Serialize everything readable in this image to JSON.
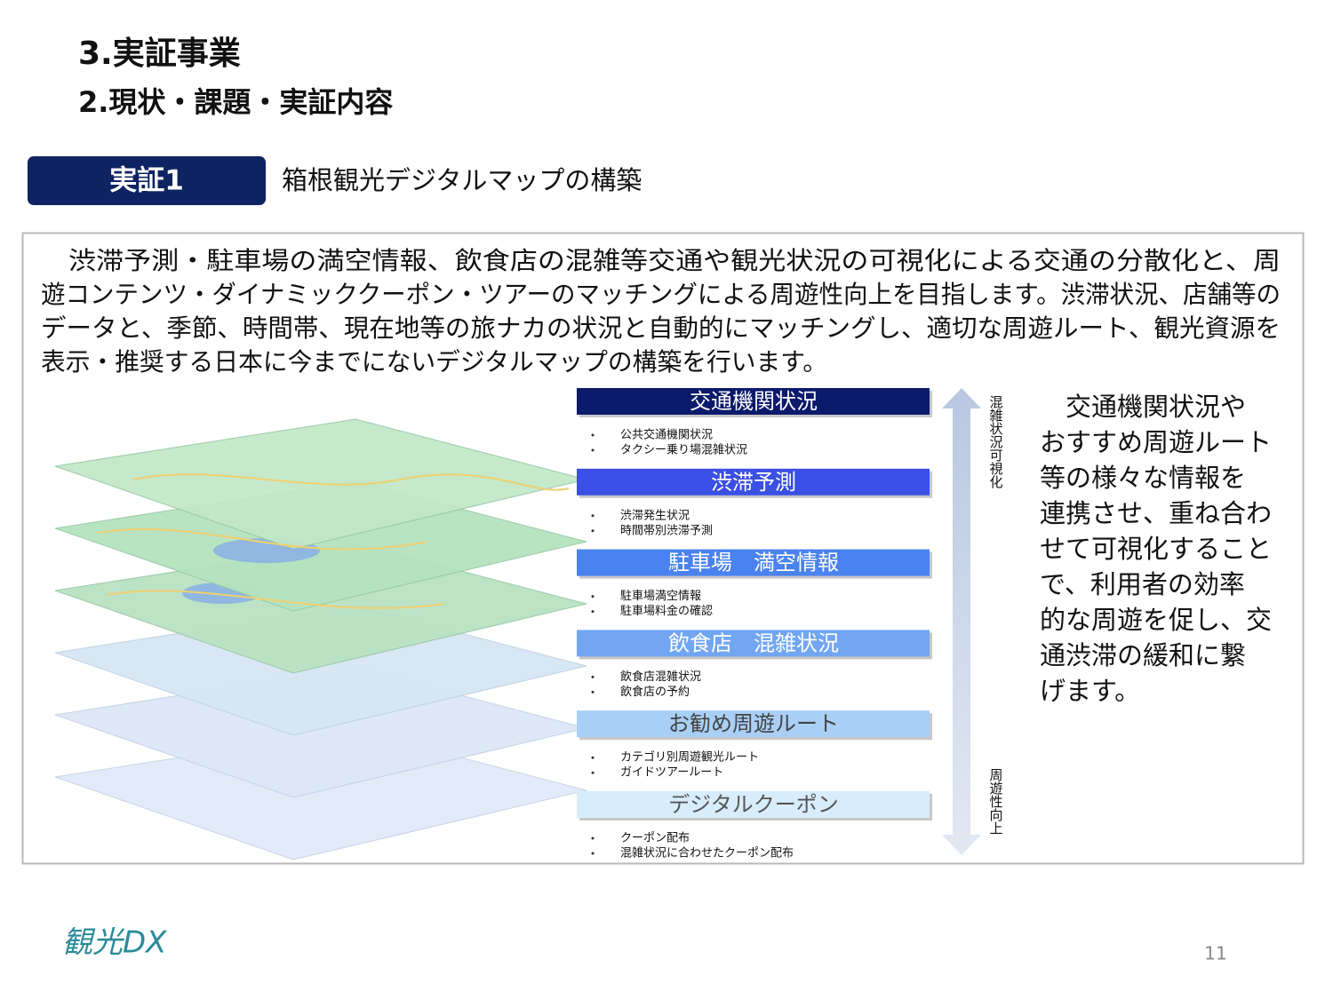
{
  "header": {
    "title": "3.実証事業",
    "subtitle": "2.現状・課題・実証内容"
  },
  "section": {
    "badge": "実証1",
    "heading": "箱根観光デジタルマップの構築"
  },
  "body": {
    "lines": [
      "　渋滞予測・駐車場の満空情報、飲食店の混雑等交通や観光状況の可視化による交通の分散化と、周",
      "遊コンテンツ・ダイナミッククーポン・ツアーのマッチングによる周遊性向上を目指します。渋滞状況、店舗等の",
      "データと、季節、時間帯、現在地等の旅ナカの状況と自動的にマッチングし、適切な周遊ルート、観光資源を",
      "表示・推奨する日本に今までにないデジタルマップの構築を行います。"
    ]
  },
  "layers": {
    "axis_top": "混雑状況可視化",
    "axis_bottom": "周遊性向上",
    "items": [
      {
        "title": "交通機関状況",
        "color": "#0c1a6b",
        "text_color": "#ffffff",
        "bullets": [
          "公共交通機関状況",
          "タクシー乗り場混雑状況"
        ]
      },
      {
        "title": "渋滞予測",
        "color": "#3a4fe3",
        "text_color": "#ffffff",
        "bullets": [
          "渋滞発生状況",
          "時間帯別渋滞予測"
        ]
      },
      {
        "title": "駐車場　満空情報",
        "color": "#4a82ef",
        "text_color": "#ffffff",
        "bullets": [
          "駐車場満空情報",
          "駐車場料金の確認"
        ]
      },
      {
        "title": "飲食店　混雑状況",
        "color": "#72a6f2",
        "text_color": "#ffffff",
        "bullets": [
          "飲食店混雑状況",
          "飲食店の予約"
        ]
      },
      {
        "title": "お勧め周遊ルート",
        "color": "#a9cff6",
        "text_color": "#444444",
        "bullets": [
          "カテゴリ別周遊観光ルート",
          "ガイドツアールート"
        ]
      },
      {
        "title": "デジタルクーポン",
        "color": "#d8edfb",
        "text_color": "#555555",
        "bullets": [
          "クーポン配布",
          "混雑状況に合わせたクーポン配布"
        ]
      }
    ]
  },
  "side": {
    "lines": [
      "　交通機関状況や",
      "おすすめ周遊ルート",
      "等の様々な情報を",
      "連携させ、重ね合わ",
      "せて可視化すること",
      "で、利用者の効率",
      "的な周遊を促し、交",
      "通渋滞の緩和に繋",
      "げます。"
    ]
  },
  "footer": {
    "logo": "観光DX",
    "page": "11"
  }
}
